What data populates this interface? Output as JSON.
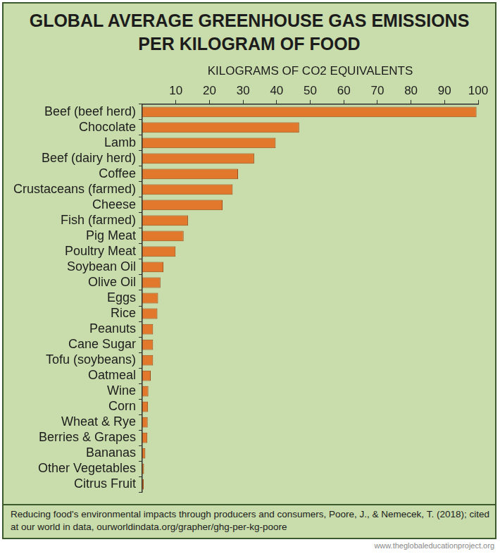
{
  "chart_data": {
    "type": "bar",
    "orientation": "horizontal",
    "title": [
      "GLOBAL AVERAGE GREENHOUSE GAS EMISSIONS",
      "PER KILOGRAM OF FOOD"
    ],
    "x_label": "KILOGRAMS OF CO2 EQUIVALENTS",
    "categories": [
      "Beef (beef herd)",
      "Chocolate",
      "Lamb",
      "Beef (dairy herd)",
      "Coffee",
      "Crustaceans (farmed)",
      "Cheese",
      "Fish (farmed)",
      "Pig Meat",
      "Poultry Meat",
      "Soybean Oil",
      "Olive Oil",
      "Eggs",
      "Rice",
      "Peanuts",
      "Cane Sugar",
      "Tofu (soybeans)",
      "Oatmeal",
      "Wine",
      "Corn",
      "Wheat & Rye",
      "Berries & Grapes",
      "Bananas",
      "Other Vegetables",
      "Citrus Fruit"
    ],
    "values": [
      99.5,
      46.7,
      39.7,
      33.3,
      28.5,
      26.9,
      23.9,
      13.6,
      12.3,
      9.9,
      6.3,
      5.4,
      4.7,
      4.5,
      3.2,
      3.2,
      3.2,
      2.5,
      1.8,
      1.7,
      1.6,
      1.5,
      0.9,
      0.5,
      0.4
    ],
    "color": "#e2782c",
    "xlim": [
      0,
      100
    ],
    "xticks": [
      10,
      20,
      30,
      40,
      50,
      60,
      70,
      80,
      90,
      100
    ],
    "grid": false,
    "source": "Reducing food's environmental impacts through producers and consumers, Poore, J., & Nemecek, T. (2018); cited at our world in data, ourworldindata.org/grapher/ghg-per-kg-poore",
    "credit": "www.theglobaleducationproject.org"
  }
}
